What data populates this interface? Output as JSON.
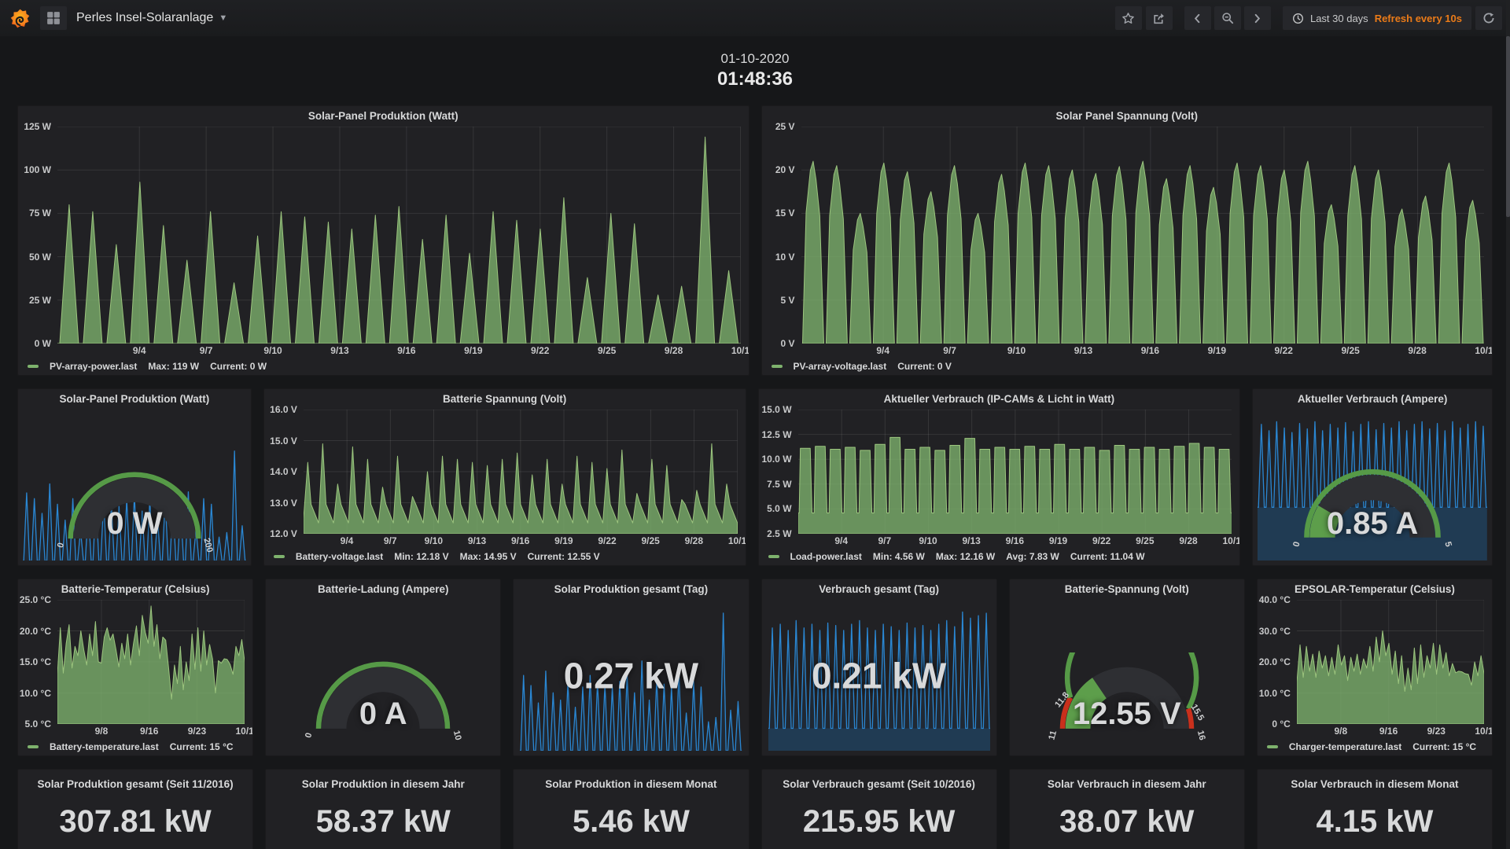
{
  "navbar": {
    "title": "Perles Insel-Solaranlage",
    "time_range": "Last 30 days",
    "refresh_text": "Refresh every 10s"
  },
  "clock": {
    "date": "01-10-2020",
    "time": "01:48:36"
  },
  "colors": {
    "green": "#7eb26d",
    "blue": "#1f78c1",
    "orange": "#eb7b18",
    "gauge_green": "#569a47",
    "gauge_red": "#c9301c",
    "wedge_green": "#5d9e4b"
  },
  "panels": {
    "pv_power": {
      "title": "Solar-Panel Produktion (Watt)",
      "yticks": [
        "125 W",
        "100 W",
        "75 W",
        "50 W",
        "25 W",
        "0 W"
      ],
      "xticks": [
        "9/4",
        "9/7",
        "9/10",
        "9/13",
        "9/16",
        "9/19",
        "9/22",
        "9/25",
        "9/28",
        "10/1"
      ],
      "legend": {
        "series": "PV-array-power.last",
        "stats": [
          "Max: 119 W",
          "Current: 0 W"
        ]
      },
      "chart": {
        "kind": "spikes",
        "peaks": [
          80,
          76,
          57,
          93,
          68,
          48,
          76,
          35,
          62,
          76,
          73,
          70,
          66,
          74,
          79,
          60,
          74,
          52,
          76,
          71,
          66,
          84,
          38,
          75,
          69,
          28,
          33,
          119,
          42
        ],
        "dmin": 0,
        "dmax": 125,
        "grid": {
          "xn": 10,
          "yn": 6,
          "xstart": 0.12
        }
      }
    },
    "pv_voltage": {
      "title": "Solar Panel Spannung (Volt)",
      "yticks": [
        "25 V",
        "20 V",
        "15 V",
        "10 V",
        "5 V",
        "0 V"
      ],
      "xticks": [
        "9/4",
        "9/7",
        "9/10",
        "9/13",
        "9/16",
        "9/19",
        "9/22",
        "9/25",
        "9/28",
        "10/1"
      ],
      "legend": {
        "series": "PV-array-voltage.last",
        "stats": [
          "Current: 0 V"
        ]
      },
      "chart": {
        "kind": "daylight",
        "peaks": [
          21,
          20.5,
          15,
          20.8,
          19.8,
          17.5,
          20.5,
          15,
          19.5,
          20.8,
          20.5,
          20,
          19.6,
          20.4,
          21,
          19,
          20.5,
          18,
          20.8,
          20.5,
          20,
          21,
          16,
          20.5,
          20,
          15.5,
          17,
          20.8,
          16.5
        ],
        "dmin": 0,
        "dmax": 25,
        "grid": {
          "xn": 10,
          "yn": 6,
          "xstart": 0.12
        }
      }
    },
    "pv_power_gauge": {
      "title": "Solar-Panel Produktion (Watt)",
      "value": "0 W",
      "gauge": {
        "fraction": 0,
        "wedge_color": "#5d9e4b",
        "segments": [
          {
            "f0": 0,
            "f1": 1,
            "color": "#569a47"
          }
        ],
        "labels": [
          {
            "t": "0",
            "f": 0
          },
          {
            "t": "200",
            "f": 1
          }
        ]
      },
      "spark": {
        "kind": "spark",
        "peaks": [
          0.6,
          0.55,
          0.42,
          0.68,
          0.5,
          0.36,
          0.55,
          0.27,
          0.46,
          0.55,
          0.53,
          0.51,
          0.48,
          0.54,
          0.58,
          0.44,
          0.54,
          0.38,
          0.55,
          0.52,
          0.48,
          0.61,
          0.28,
          0.55,
          0.5,
          0.21,
          0.25,
          0.97,
          0.31
        ],
        "band": 0
      }
    },
    "batt_voltage": {
      "title": "Batterie Spannung (Volt)",
      "yticks": [
        "16.0 V",
        "15.0 V",
        "14.0 V",
        "13.0 V",
        "12.0 V"
      ],
      "xticks": [
        "9/4",
        "9/7",
        "9/10",
        "9/13",
        "9/16",
        "9/19",
        "9/22",
        "9/25",
        "9/28",
        "10/1"
      ],
      "legend": {
        "series": "Battery-voltage.last",
        "stats": [
          "Min: 12.18 V",
          "Max: 14.95 V",
          "Current: 12.55 V"
        ]
      },
      "chart": {
        "kind": "saw",
        "peaks": [
          14.3,
          14.9,
          13.6,
          14.8,
          14.4,
          13.5,
          14.5,
          13.2,
          14.0,
          14.5,
          14.4,
          14.3,
          14.2,
          14.4,
          14.6,
          13.9,
          14.4,
          13.6,
          14.5,
          14.3,
          14.1,
          14.7,
          13.3,
          14.4,
          14.2,
          13.1,
          13.4,
          14.9,
          13.6
        ],
        "dmin": 12,
        "dmax": 16,
        "grid": {
          "xn": 10,
          "yn": 5,
          "xstart": 0.1
        }
      }
    },
    "load_power": {
      "title": "Aktueller Verbrauch (IP-CAMs & Licht in Watt)",
      "yticks": [
        "15.0 W",
        "12.5 W",
        "10.0 W",
        "7.5 W",
        "5.0 W",
        "2.5 W"
      ],
      "xticks": [
        "9/4",
        "9/7",
        "9/10",
        "9/13",
        "9/16",
        "9/19",
        "9/22",
        "9/25",
        "9/28",
        "10/1"
      ],
      "legend": {
        "series": "Load-power.last",
        "stats": [
          "Min: 4.56 W",
          "Max: 12.16 W",
          "Avg: 7.83 W",
          "Current: 11.04 W"
        ]
      },
      "chart": {
        "kind": "load",
        "tops": [
          11.1,
          11.3,
          11.0,
          11.2,
          10.9,
          11.5,
          12.2,
          11.0,
          11.2,
          10.9,
          11.4,
          12.1,
          11.0,
          11.2,
          11.0,
          11.3,
          11.0,
          11.5,
          11.0,
          11.2,
          10.9,
          11.4,
          11.0,
          11.2,
          11.0,
          11.3,
          11.6,
          11.2,
          11.0
        ],
        "valley": 4.6,
        "dmin": 2.5,
        "dmax": 15,
        "grid": {
          "xn": 10,
          "yn": 6,
          "xstart": 0.1
        }
      }
    },
    "amp_gauge": {
      "title": "Aktueller Verbrauch (Ampere)",
      "value": "0.85 A",
      "gauge": {
        "fraction": 0.17,
        "wedge_color": "#5d9e4b",
        "segments": [
          {
            "f0": 0,
            "f1": 1,
            "color": "#569a47"
          }
        ],
        "labels": [
          {
            "t": "0",
            "f": 0
          },
          {
            "t": "5",
            "f": 1
          }
        ]
      },
      "spark": {
        "kind": "spark",
        "peaks": [
          0.92,
          0.85,
          0.95,
          0.88,
          0.83,
          0.93,
          0.87,
          0.95,
          0.85,
          0.92,
          0.88,
          0.94,
          0.84,
          0.92,
          0.95,
          0.86,
          0.93,
          0.88,
          0.95,
          0.85,
          0.92,
          0.95,
          0.87,
          0.93,
          0.85,
          0.95,
          0.88,
          0.92,
          0.95,
          0.9
        ],
        "band": 0.36
      }
    },
    "batt_temp": {
      "title": "Batterie-Temperatur (Celsius)",
      "yticks": [
        "25.0 °C",
        "20.0 °C",
        "15.0 °C",
        "10.0 °C",
        "5.0 °C"
      ],
      "xticks": [
        "9/8",
        "9/16",
        "9/23",
        "10/1"
      ],
      "legend": {
        "series": "Battery-temperature.last",
        "stats": [
          "Current: 15 °C"
        ]
      },
      "chart": {
        "kind": "area",
        "values": [
          13,
          20.5,
          13.2,
          18,
          21,
          14,
          17.5,
          16,
          20,
          17,
          14.5,
          19.5,
          16,
          21.5,
          15,
          14.8,
          19,
          20.5,
          18.5,
          19.5,
          17,
          14.2,
          18,
          15.5,
          19.5,
          14.5,
          18,
          20.8,
          16,
          22.5,
          19.8,
          18,
          24,
          17.5,
          21,
          15.5,
          19,
          18.5,
          14,
          9,
          14.5,
          11.5,
          17.5,
          10.5,
          15,
          12,
          19.5,
          13.8,
          20.5,
          13.5,
          20,
          14.5,
          17.8,
          15.5,
          10,
          15.2,
          14.8,
          15.5,
          15.4,
          14.6,
          13,
          17.5,
          16,
          18.6,
          15
        ],
        "dmin": 5,
        "dmax": 25,
        "grid": {
          "xn": 4,
          "yn": 5,
          "xstart": 0.235
        }
      }
    },
    "charge_gauge": {
      "title": "Batterie-Ladung (Ampere)",
      "value": "0 A",
      "gauge": {
        "fraction": 0,
        "wedge_color": "#5d9e4b",
        "segments": [
          {
            "f0": 0,
            "f1": 1,
            "color": "#569a47"
          }
        ],
        "labels": [
          {
            "t": "0",
            "f": 0
          },
          {
            "t": "10",
            "f": 1
          }
        ]
      }
    },
    "solar_day_stat": {
      "title": "Solar Produktion gesamt (Tag)",
      "value": "0.27 kW",
      "spark": {
        "kind": "spark",
        "peaks": [
          0.52,
          0.45,
          0.33,
          0.55,
          0.4,
          0.35,
          0.48,
          0.3,
          0.44,
          0.52,
          0.48,
          0.46,
          0.44,
          0.48,
          0.53,
          0.4,
          0.62,
          0.35,
          0.5,
          0.46,
          0.44,
          0.55,
          0.26,
          0.48,
          0.44,
          0.2,
          0.23,
          0.95,
          0.28,
          0.34
        ],
        "band": 0
      }
    },
    "load_day_stat": {
      "title": "Verbrauch gesamt (Tag)",
      "value": "0.21 kW",
      "spark": {
        "kind": "spark",
        "peaks": [
          0.82,
          0.85,
          0.8,
          0.88,
          0.82,
          0.85,
          0.8,
          0.86,
          0.84,
          0.8,
          0.85,
          0.88,
          0.82,
          0.8,
          0.85,
          0.83,
          0.8,
          0.86,
          0.82,
          0.84,
          0.8,
          0.85,
          0.88,
          0.83,
          0.95,
          0.9,
          0.92,
          0.94
        ],
        "band": 0.15
      }
    },
    "battv_gauge": {
      "title": "Batterie-Spannung (Volt)",
      "value": "12.55 V",
      "gauge": {
        "fraction": 0.31,
        "wedge_color": "#5d9e4b",
        "segments": [
          {
            "f0": 0,
            "f1": 0.16,
            "color": "#c9301c"
          },
          {
            "f0": 0.16,
            "f1": 0.9,
            "color": "#569a47"
          },
          {
            "f0": 0.9,
            "f1": 1,
            "color": "#c9301c"
          }
        ],
        "labels": [
          {
            "t": "11",
            "f": 0
          },
          {
            "t": "11.8",
            "f": 0.16
          },
          {
            "t": "15.5",
            "f": 0.9
          },
          {
            "t": "16",
            "f": 1
          }
        ]
      }
    },
    "charger_temp": {
      "title": "EPSOLAR-Temperatur (Celsius)",
      "yticks": [
        "40.0 °C",
        "30.0 °C",
        "20.0 °C",
        "10.0 °C",
        "0 °C"
      ],
      "xticks": [
        "9/8",
        "9/16",
        "9/23",
        "10/1"
      ],
      "legend": {
        "series": "Charger-temperature.last",
        "stats": [
          "Current: 15 °C"
        ]
      },
      "chart": {
        "kind": "area",
        "values": [
          13.5,
          25.5,
          15,
          25,
          17,
          22.5,
          15,
          23.5,
          18,
          22,
          15.5,
          21.5,
          16,
          25.5,
          19,
          22,
          14,
          21.5,
          17,
          22.5,
          16,
          21,
          18,
          25,
          17,
          28,
          20,
          30,
          22,
          26,
          16,
          23.5,
          13,
          22,
          10.5,
          18,
          11,
          24.5,
          13,
          25.5,
          15,
          22,
          18,
          26,
          16,
          25.5,
          18,
          23,
          15.5,
          19.5,
          16.5,
          17,
          16.8,
          16.2,
          16,
          12.5,
          20,
          15.5,
          22,
          16
        ],
        "dmin": 0,
        "dmax": 40,
        "grid": {
          "xn": 4,
          "yn": 5,
          "xstart": 0.235
        }
      }
    }
  },
  "stats": [
    {
      "title": "Solar Produktion gesamt (Seit 11/2016)",
      "value": "307.81 kW"
    },
    {
      "title": "Solar Produktion in diesem Jahr",
      "value": "58.37 kW"
    },
    {
      "title": "Solar Produktion in diesem Monat",
      "value": "5.46 kW"
    },
    {
      "title": "Solar Verbrauch gesamt (Seit 10/2016)",
      "value": "215.95 kW"
    },
    {
      "title": "Solar Verbrauch in diesem Jahr",
      "value": "38.07 kW"
    },
    {
      "title": "Solar Verbrauch in diesem Monat",
      "value": "4.15 kW"
    }
  ]
}
